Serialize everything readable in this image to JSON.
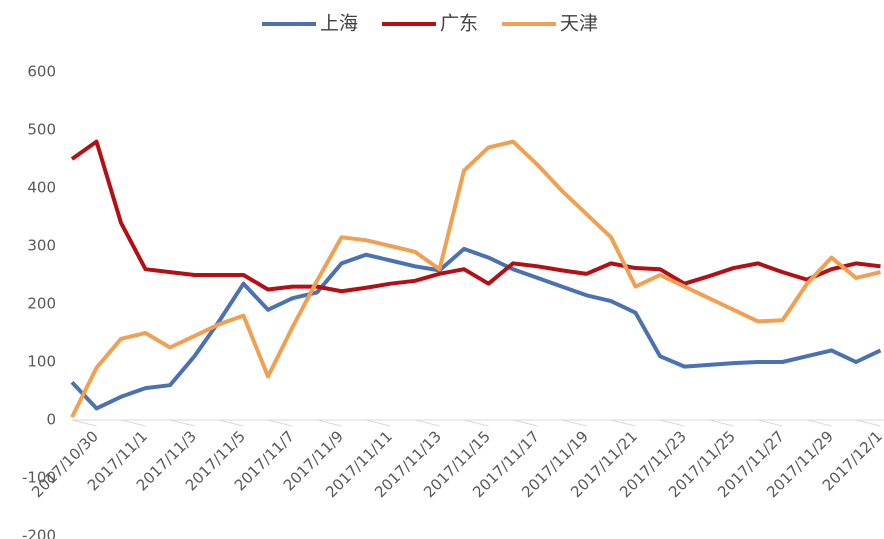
{
  "chart_data": {
    "type": "line",
    "categories": [
      "2017/10/30",
      null,
      "2017/11/1",
      null,
      "2017/11/3",
      null,
      "2017/11/5",
      null,
      "2017/11/7",
      null,
      "2017/11/9",
      null,
      "2017/11/11",
      null,
      "2017/11/13",
      null,
      "2017/11/15",
      null,
      "2017/11/17",
      null,
      "2017/11/19",
      null,
      "2017/11/21",
      null,
      "2017/11/23",
      null,
      "2017/11/25",
      null,
      "2017/11/27",
      null,
      "2017/11/29",
      null,
      "2017/12/1",
      null
    ],
    "series": [
      {
        "name": "上海",
        "color": "#4a72b0",
        "values": [
          65,
          20,
          40,
          55,
          60,
          110,
          170,
          235,
          190,
          210,
          220,
          270,
          285,
          275,
          265,
          258,
          295,
          280,
          260,
          245,
          230,
          215,
          205,
          185,
          110,
          92,
          95,
          98,
          100,
          100,
          110,
          120,
          100,
          120
        ]
      },
      {
        "name": "广东",
        "color": "#b40f14",
        "values": [
          450,
          480,
          340,
          260,
          255,
          250,
          250,
          250,
          225,
          230,
          230,
          222,
          228,
          235,
          240,
          252,
          260,
          235,
          270,
          265,
          258,
          252,
          270,
          262,
          260,
          235,
          248,
          262,
          270,
          255,
          242,
          260,
          270,
          265
        ]
      },
      {
        "name": "天津",
        "color": "#f0a050",
        "values": [
          5,
          90,
          140,
          150,
          125,
          145,
          165,
          180,
          75,
          160,
          240,
          315,
          310,
          300,
          290,
          260,
          430,
          470,
          480,
          440,
          395,
          355,
          315,
          230,
          250,
          230,
          210,
          190,
          170,
          172,
          235,
          280,
          245,
          255
        ]
      }
    ],
    "ylim": [
      -200,
      600
    ],
    "yticks": [
      -200,
      -100,
      0,
      100,
      200,
      300,
      400,
      500,
      600
    ]
  }
}
